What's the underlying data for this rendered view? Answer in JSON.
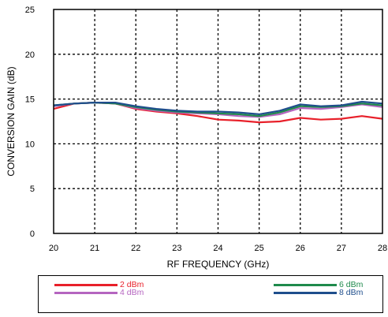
{
  "chart_data": {
    "type": "line",
    "xlabel": "RF FREQUENCY (GHz)",
    "ylabel": "CONVERSION GAIN (dB)",
    "xlim": [
      20,
      28
    ],
    "ylim": [
      0,
      25
    ],
    "xticks": [
      "20",
      "21",
      "22",
      "23",
      "24",
      "25",
      "26",
      "27",
      "28"
    ],
    "yticks": [
      "0",
      "5",
      "10",
      "15",
      "20",
      "25"
    ],
    "grid": true,
    "legend_position": "bottom",
    "x": [
      20,
      20.5,
      21,
      21.5,
      22,
      22.5,
      23,
      23.5,
      24,
      24.5,
      25,
      25.5,
      26,
      26.5,
      27,
      27.5,
      28
    ],
    "series": [
      {
        "name": "2 dBm",
        "color": "#e8202a",
        "values": [
          13.9,
          14.5,
          14.6,
          14.5,
          13.9,
          13.6,
          13.4,
          13.1,
          12.7,
          12.6,
          12.4,
          12.5,
          12.9,
          12.7,
          12.8,
          13.1,
          12.8
        ]
      },
      {
        "name": "4 dBm",
        "color": "#b565c0",
        "values": [
          14.2,
          14.5,
          14.6,
          14.5,
          14.0,
          13.7,
          13.5,
          13.4,
          13.3,
          13.1,
          13.0,
          13.3,
          14.0,
          13.9,
          14.1,
          14.4,
          14.1
        ]
      },
      {
        "name": "6 dBm",
        "color": "#1f8a4c",
        "values": [
          14.3,
          14.5,
          14.6,
          14.5,
          14.1,
          13.8,
          13.6,
          13.5,
          13.4,
          13.3,
          13.1,
          13.5,
          14.2,
          14.1,
          14.2,
          14.5,
          14.3
        ]
      },
      {
        "name": "8 dBm",
        "color": "#1f4e8c",
        "values": [
          14.3,
          14.5,
          14.6,
          14.6,
          14.2,
          13.9,
          13.7,
          13.6,
          13.6,
          13.5,
          13.3,
          13.7,
          14.4,
          14.2,
          14.3,
          14.7,
          14.5
        ]
      }
    ]
  }
}
